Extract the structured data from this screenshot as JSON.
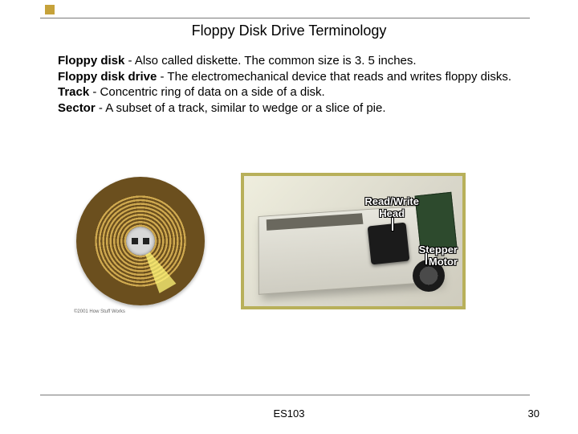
{
  "title": "Floppy Disk Drive Terminology",
  "definitions": [
    {
      "term": "Floppy disk",
      "desc": " - Also called diskette. The common size is 3. 5 inches."
    },
    {
      "term": "Floppy disk drive",
      "desc": " - The electromechanical device that reads and writes floppy disks."
    },
    {
      "term": "Track",
      "desc": " - Concentric ring of data on a side of a disk."
    },
    {
      "term": "Sector",
      "desc": " - A subset of a track, similar to wedge or a slice of pie."
    }
  ],
  "track_figure": {
    "copyright": "©2001 How Stuff Works",
    "hub_color": "#d8d8d8",
    "ring_light": "#cfa94f",
    "ring_dark": "#6b4f1e",
    "sector_highlight": "rgba(255,245,120,0.75)"
  },
  "drive_figure": {
    "border_color": "#b8b05a",
    "callout_rw_l1": "Read/Write",
    "callout_rw_l2": "Head",
    "callout_sm_l1": "Stepper",
    "callout_sm_l2": "Motor"
  },
  "footer": {
    "center": "ES103",
    "page": "30"
  },
  "colors": {
    "rule": "#7a7a7a",
    "accent_square": "#c6a23a",
    "text": "#000000",
    "background": "#ffffff"
  }
}
